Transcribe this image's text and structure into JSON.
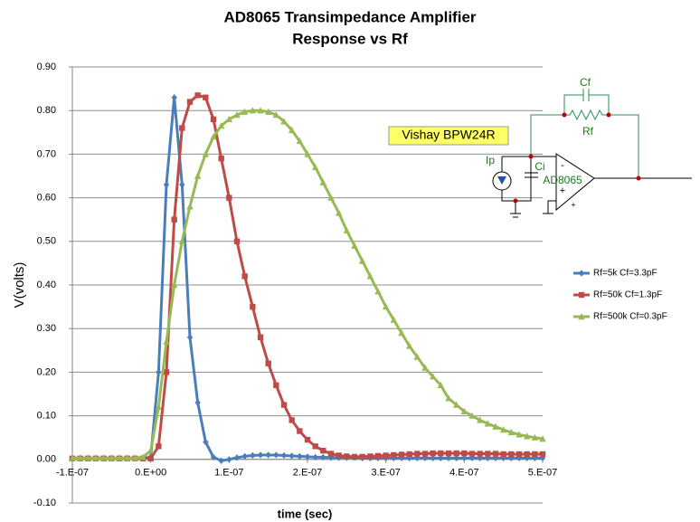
{
  "chart_data": {
    "type": "line",
    "title": "AD8065 Transimpedance  Amplifier",
    "subtitle": "Response vs Rf",
    "x_label": "time (sec)",
    "y_label": "V(volts)",
    "x": [
      -1e-07,
      -9e-08,
      -8e-08,
      -7e-08,
      -6e-08,
      -5e-08,
      -4e-08,
      -3e-08,
      -2e-08,
      -1e-08,
      0,
      1e-08,
      2e-08,
      3e-08,
      4e-08,
      5e-08,
      6e-08,
      7e-08,
      8e-08,
      9e-08,
      1e-07,
      1.1e-07,
      1.2e-07,
      1.3e-07,
      1.4e-07,
      1.5e-07,
      1.6e-07,
      1.7e-07,
      1.8e-07,
      1.9e-07,
      2e-07,
      2.1e-07,
      2.2e-07,
      2.3e-07,
      2.4e-07,
      2.5e-07,
      2.6e-07,
      2.7e-07,
      2.8e-07,
      2.9e-07,
      3e-07,
      3.1e-07,
      3.2e-07,
      3.3e-07,
      3.4e-07,
      3.5e-07,
      3.6e-07,
      3.7e-07,
      3.8e-07,
      3.9e-07,
      4e-07,
      4.1e-07,
      4.2e-07,
      4.3e-07,
      4.4e-07,
      4.5e-07,
      4.6e-07,
      4.7e-07,
      4.8e-07,
      4.9e-07,
      5e-07
    ],
    "series": [
      {
        "name": "Rf=5k  Cf=3.3pF",
        "color": "#4a7ebb",
        "marker": "diamond",
        "values": [
          0.003,
          0.003,
          0.003,
          0.003,
          0.003,
          0.003,
          0.003,
          0.003,
          0.003,
          0.003,
          0.005,
          0.2,
          0.63,
          0.83,
          0.63,
          0.28,
          0.13,
          0.04,
          0.005,
          -0.003,
          0.0,
          0.004,
          0.007,
          0.009,
          0.01,
          0.01,
          0.01,
          0.009,
          0.008,
          0.007,
          0.006,
          0.005,
          0.005,
          0.004,
          0.004,
          0.004,
          0.004,
          0.003,
          0.003,
          0.003,
          0.003,
          0.003,
          0.003,
          0.003,
          0.003,
          0.003,
          0.003,
          0.003,
          0.003,
          0.003,
          0.003,
          0.003,
          0.003,
          0.003,
          0.003,
          0.003,
          0.003,
          0.003,
          0.003,
          0.003,
          0.003
        ]
      },
      {
        "name": "Rf=50k  Cf=1.3pF",
        "color": "#be4b48",
        "marker": "square",
        "values": [
          0.002,
          0.002,
          0.002,
          0.002,
          0.002,
          0.002,
          0.002,
          0.002,
          0.002,
          0.002,
          0.002,
          0.03,
          0.2,
          0.55,
          0.76,
          0.82,
          0.835,
          0.83,
          0.78,
          0.69,
          0.6,
          0.5,
          0.42,
          0.35,
          0.28,
          0.22,
          0.17,
          0.125,
          0.09,
          0.065,
          0.045,
          0.03,
          0.02,
          0.013,
          0.009,
          0.007,
          0.006,
          0.006,
          0.007,
          0.008,
          0.009,
          0.01,
          0.011,
          0.012,
          0.013,
          0.013,
          0.014,
          0.014,
          0.014,
          0.014,
          0.014,
          0.013,
          0.013,
          0.013,
          0.013,
          0.012,
          0.012,
          0.012,
          0.012,
          0.012,
          0.012
        ]
      },
      {
        "name": "Rf=500k  Cf=0.3pF",
        "color": "#98b954",
        "marker": "triangle",
        "values": [
          0.003,
          0.003,
          0.003,
          0.003,
          0.003,
          0.003,
          0.003,
          0.003,
          0.003,
          0.005,
          0.02,
          0.12,
          0.27,
          0.4,
          0.5,
          0.58,
          0.65,
          0.7,
          0.74,
          0.765,
          0.78,
          0.79,
          0.797,
          0.8,
          0.8,
          0.797,
          0.79,
          0.775,
          0.755,
          0.73,
          0.7,
          0.67,
          0.635,
          0.6,
          0.565,
          0.525,
          0.49,
          0.455,
          0.42,
          0.385,
          0.35,
          0.32,
          0.29,
          0.26,
          0.235,
          0.21,
          0.19,
          0.17,
          0.14,
          0.125,
          0.11,
          0.1,
          0.09,
          0.082,
          0.075,
          0.068,
          0.062,
          0.057,
          0.053,
          0.05,
          0.047
        ]
      }
    ],
    "xlim": [
      -1e-07,
      5e-07
    ],
    "ylim": [
      -0.1,
      0.9
    ],
    "xticks": [
      {
        "value": -1e-07,
        "label": "-1.E-07"
      },
      {
        "value": 0,
        "label": "0.E+00"
      },
      {
        "value": 1e-07,
        "label": "1.E-07"
      },
      {
        "value": 2e-07,
        "label": "2.E-07"
      },
      {
        "value": 3e-07,
        "label": "3.E-07"
      },
      {
        "value": 4e-07,
        "label": "4.E-07"
      },
      {
        "value": 5e-07,
        "label": "5.E-07"
      }
    ],
    "yticks": [
      {
        "value": -0.1,
        "label": "-0.10"
      },
      {
        "value": 0,
        "label": "0.00"
      },
      {
        "value": 0.1,
        "label": "0.10"
      },
      {
        "value": 0.2,
        "label": "0.20"
      },
      {
        "value": 0.3,
        "label": "0.30"
      },
      {
        "value": 0.4,
        "label": "0.40"
      },
      {
        "value": 0.5,
        "label": "0.50"
      },
      {
        "value": 0.6,
        "label": "0.60"
      },
      {
        "value": 0.7,
        "label": "0.70"
      },
      {
        "value": 0.8,
        "label": "0.80"
      },
      {
        "value": 0.9,
        "label": "0.90"
      }
    ],
    "grid": true,
    "legend": "right",
    "annotations": {
      "sensor": "Vishay BPW24R",
      "cf": "Cf",
      "rf": "Rf",
      "ip": "Ip",
      "ci": "Ci",
      "opamp": "AD8065",
      "minus": "-",
      "plus": "+"
    }
  }
}
